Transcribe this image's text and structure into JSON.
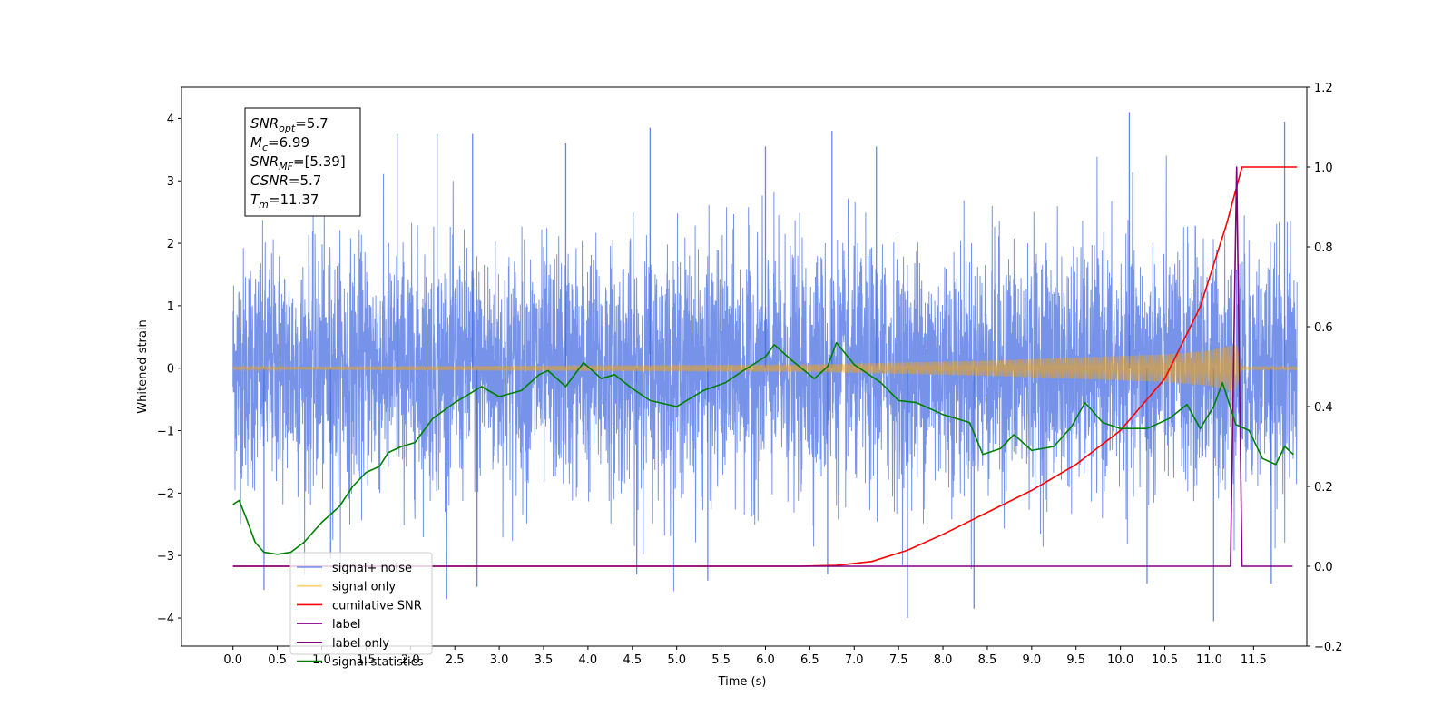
{
  "chart_data": {
    "type": "line",
    "xlabel": "Time (s)",
    "ylabel": "Whitened strain",
    "xlim": [
      -0.58,
      12.1
    ],
    "ylim": [
      -4.45,
      4.5
    ],
    "y2lim": [
      -0.2,
      1.2
    ],
    "x_ticks": [
      0.0,
      0.5,
      1.0,
      1.5,
      2.0,
      2.5,
      3.0,
      3.5,
      4.0,
      4.5,
      5.0,
      5.5,
      6.0,
      6.5,
      7.0,
      7.5,
      8.0,
      8.5,
      9.0,
      9.5,
      10.0,
      10.5,
      11.0,
      11.5
    ],
    "x_tick_labels": [
      "0.0",
      "0.5",
      "1.0",
      "1.5",
      "2.0",
      "2.5",
      "3.0",
      "3.5",
      "4.0",
      "4.5",
      "5.0",
      "5.5",
      "6.0",
      "6.5",
      "7.0",
      "7.5",
      "8.0",
      "8.5",
      "9.0",
      "9.5",
      "10.0",
      "10.5",
      "11.0",
      "11.5"
    ],
    "y_ticks": [
      -4,
      -3,
      -2,
      -1,
      0,
      1,
      2,
      3,
      4
    ],
    "y_tick_labels": [
      "−4",
      "−3",
      "−2",
      "−1",
      "0",
      "1",
      "2",
      "3",
      "4"
    ],
    "y2_ticks": [
      -0.2,
      0.0,
      0.2,
      0.4,
      0.6,
      0.8,
      1.0,
      1.2
    ],
    "y2_tick_labels": [
      "−0.2",
      "0.0",
      "0.2",
      "0.4",
      "0.6",
      "0.8",
      "1.0",
      "1.2"
    ],
    "grid": false,
    "legend_position": "lower-left",
    "annotation": {
      "lines": [
        {
          "main": "SNR",
          "sub": "opt",
          "value": "=5.7"
        },
        {
          "main": "M",
          "sub": "c",
          "value": "=6.99"
        },
        {
          "main": "SNR",
          "sub": "MF",
          "value": "=[5.39]"
        },
        {
          "main": "CSNR",
          "sub": "",
          "value": "=5.7"
        },
        {
          "main": "T",
          "sub": "m",
          "value": "=11.37"
        }
      ]
    },
    "series": [
      {
        "name": "signal+ noise",
        "axis": "left",
        "color": "#4169e1",
        "kind": "noise",
        "x_range": [
          0.0,
          11.99
        ],
        "typical_range": [
          -2.6,
          2.6
        ],
        "extreme_range": [
          -4.0,
          4.1
        ],
        "spike_highs": [
          [
            1.85,
            3.75
          ],
          [
            2.3,
            3.75
          ],
          [
            2.7,
            3.75
          ],
          [
            3.75,
            3.6
          ],
          [
            4.7,
            3.85
          ],
          [
            6.0,
            3.55
          ],
          [
            6.75,
            3.8
          ],
          [
            7.25,
            3.55
          ],
          [
            10.1,
            4.1
          ],
          [
            11.85,
            3.95
          ]
        ],
        "spike_lows": [
          [
            0.35,
            -3.55
          ],
          [
            1.1,
            -3.05
          ],
          [
            2.75,
            -3.5
          ],
          [
            4.55,
            -3.3
          ],
          [
            5.35,
            -3.4
          ],
          [
            6.7,
            -3.3
          ],
          [
            7.6,
            -4.0
          ],
          [
            8.35,
            -3.85
          ],
          [
            10.3,
            -3.45
          ],
          [
            11.05,
            -4.05
          ],
          [
            11.7,
            -3.45
          ]
        ]
      },
      {
        "name": "signal only",
        "axis": "left",
        "color": "#ffa500",
        "kind": "chirp",
        "envelope": [
          [
            0.0,
            0.02
          ],
          [
            6.5,
            0.06
          ],
          [
            7.5,
            0.09
          ],
          [
            8.5,
            0.12
          ],
          [
            9.5,
            0.17
          ],
          [
            10.5,
            0.22
          ],
          [
            11.0,
            0.28
          ],
          [
            11.3,
            0.38
          ],
          [
            11.37,
            0.02
          ],
          [
            11.99,
            0.02
          ]
        ]
      },
      {
        "name": "cumilative SNR",
        "axis": "right",
        "color": "#ff0000",
        "kind": "line",
        "points": [
          [
            0.0,
            0.0
          ],
          [
            6.4,
            0.0
          ],
          [
            6.8,
            0.002
          ],
          [
            7.2,
            0.012
          ],
          [
            7.6,
            0.04
          ],
          [
            8.0,
            0.08
          ],
          [
            8.5,
            0.135
          ],
          [
            9.0,
            0.19
          ],
          [
            9.5,
            0.255
          ],
          [
            10.0,
            0.34
          ],
          [
            10.5,
            0.47
          ],
          [
            10.9,
            0.65
          ],
          [
            11.2,
            0.86
          ],
          [
            11.37,
            1.0
          ],
          [
            11.99,
            1.0
          ]
        ]
      },
      {
        "name": "label",
        "axis": "right",
        "color": "#800080",
        "kind": "line",
        "points": [
          [
            0.0,
            0.0
          ],
          [
            11.24,
            0.0
          ],
          [
            11.31,
            1.0
          ],
          [
            11.37,
            0.0
          ],
          [
            11.94,
            0.0
          ]
        ]
      },
      {
        "name": "label only",
        "axis": "right",
        "color": "#800080",
        "kind": "hidden",
        "points": []
      },
      {
        "name": "signal statistics",
        "axis": "right",
        "color": "#008000",
        "kind": "line",
        "points": [
          [
            0.0,
            0.155
          ],
          [
            0.07,
            0.165
          ],
          [
            0.15,
            0.12
          ],
          [
            0.25,
            0.06
          ],
          [
            0.35,
            0.035
          ],
          [
            0.5,
            0.03
          ],
          [
            0.65,
            0.035
          ],
          [
            0.8,
            0.06
          ],
          [
            1.0,
            0.11
          ],
          [
            1.2,
            0.15
          ],
          [
            1.35,
            0.2
          ],
          [
            1.5,
            0.235
          ],
          [
            1.65,
            0.25
          ],
          [
            1.75,
            0.285
          ],
          [
            1.9,
            0.3
          ],
          [
            2.05,
            0.31
          ],
          [
            2.25,
            0.37
          ],
          [
            2.5,
            0.41
          ],
          [
            2.65,
            0.43
          ],
          [
            2.8,
            0.45
          ],
          [
            3.0,
            0.425
          ],
          [
            3.25,
            0.44
          ],
          [
            3.45,
            0.48
          ],
          [
            3.55,
            0.49
          ],
          [
            3.75,
            0.45
          ],
          [
            3.95,
            0.51
          ],
          [
            4.15,
            0.47
          ],
          [
            4.3,
            0.48
          ],
          [
            4.5,
            0.445
          ],
          [
            4.7,
            0.415
          ],
          [
            5.0,
            0.4
          ],
          [
            5.3,
            0.44
          ],
          [
            5.55,
            0.46
          ],
          [
            5.75,
            0.49
          ],
          [
            6.0,
            0.525
          ],
          [
            6.1,
            0.555
          ],
          [
            6.3,
            0.515
          ],
          [
            6.55,
            0.47
          ],
          [
            6.7,
            0.5
          ],
          [
            6.8,
            0.56
          ],
          [
            7.0,
            0.505
          ],
          [
            7.3,
            0.46
          ],
          [
            7.5,
            0.415
          ],
          [
            7.7,
            0.41
          ],
          [
            8.0,
            0.38
          ],
          [
            8.3,
            0.36
          ],
          [
            8.45,
            0.28
          ],
          [
            8.65,
            0.295
          ],
          [
            8.8,
            0.33
          ],
          [
            9.0,
            0.29
          ],
          [
            9.25,
            0.3
          ],
          [
            9.45,
            0.35
          ],
          [
            9.6,
            0.41
          ],
          [
            9.8,
            0.36
          ],
          [
            10.0,
            0.345
          ],
          [
            10.3,
            0.345
          ],
          [
            10.55,
            0.37
          ],
          [
            10.75,
            0.405
          ],
          [
            10.9,
            0.345
          ],
          [
            11.05,
            0.4
          ],
          [
            11.15,
            0.46
          ],
          [
            11.3,
            0.355
          ],
          [
            11.45,
            0.34
          ],
          [
            11.6,
            0.27
          ],
          [
            11.75,
            0.255
          ],
          [
            11.85,
            0.3
          ],
          [
            11.95,
            0.28
          ]
        ]
      }
    ]
  }
}
